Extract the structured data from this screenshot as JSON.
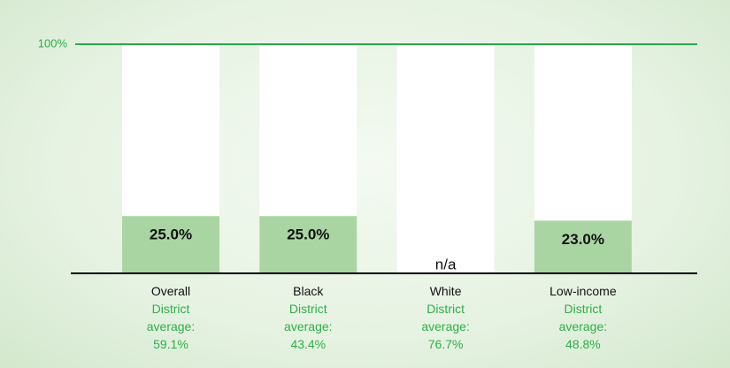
{
  "chart_data": {
    "type": "bar",
    "categories": [
      "Overall",
      "Black",
      "White",
      "Low-income"
    ],
    "values": [
      25.0,
      25.0,
      null,
      23.0
    ],
    "value_labels": [
      "25.0%",
      "25.0%",
      "n/a",
      "23.0%"
    ],
    "color": "#a9d5a3",
    "track_color": "#ffffff",
    "ylim": [
      0,
      100
    ],
    "yticks": [
      {
        "value": 100,
        "label": "100%"
      }
    ],
    "district_average": {
      "label": "District average:",
      "values": [
        59.1,
        43.4,
        76.7,
        48.8
      ],
      "value_labels": [
        "59.1%",
        "43.4%",
        "76.7%",
        "48.8%"
      ]
    }
  }
}
